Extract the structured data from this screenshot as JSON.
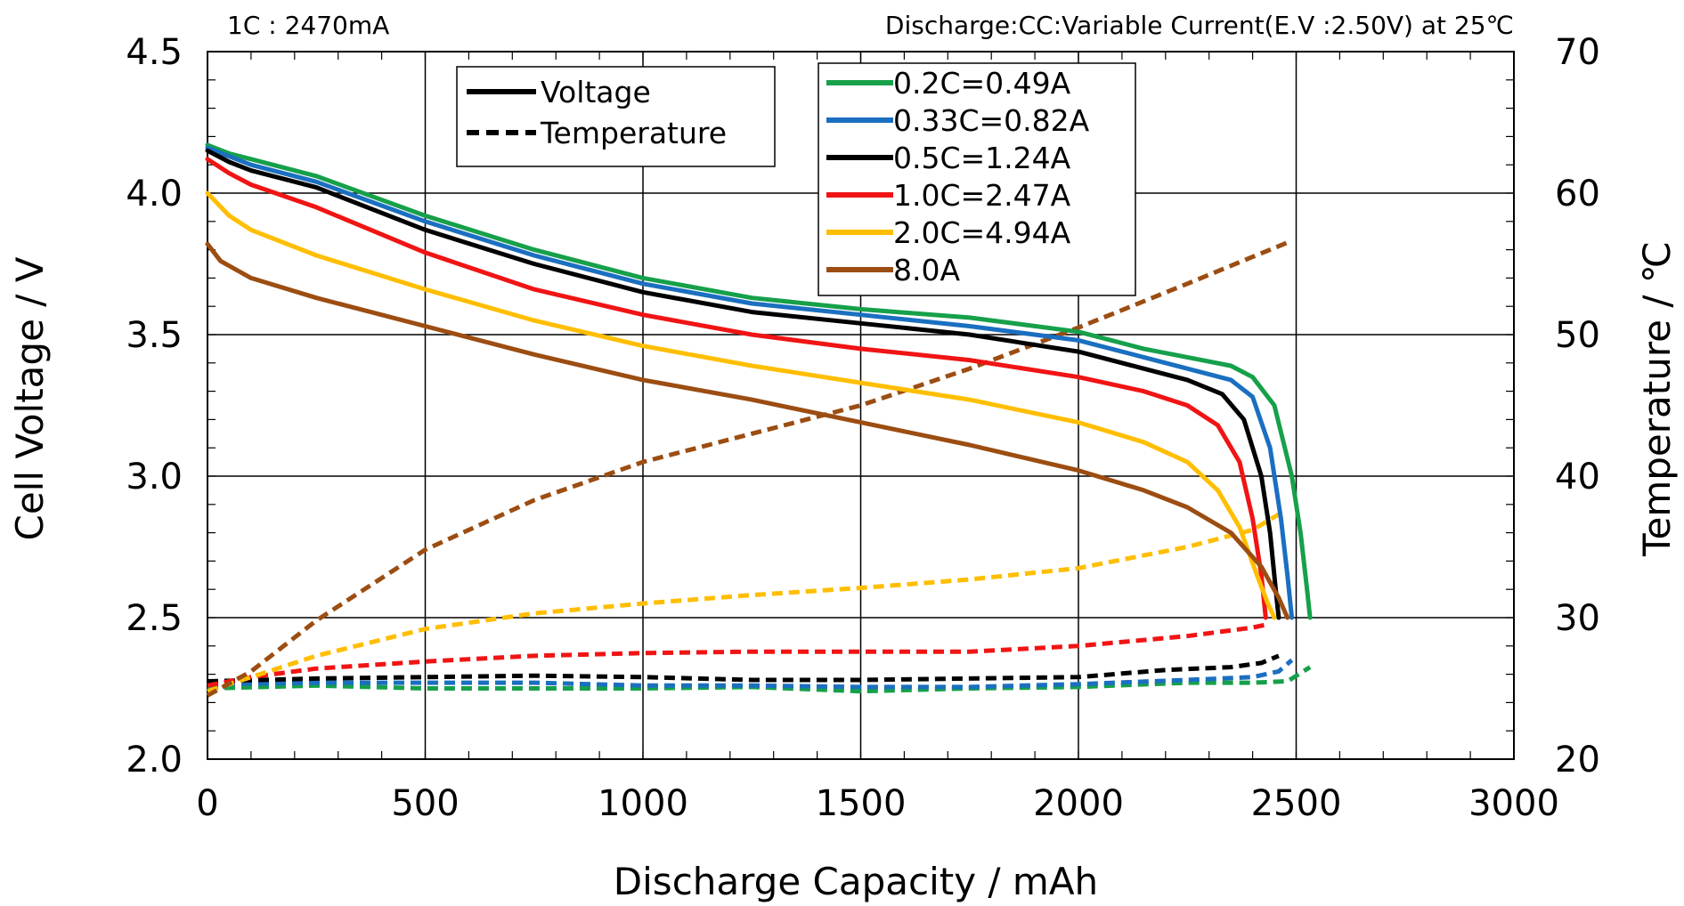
{
  "header": {
    "left_note": "1C : 2470mA",
    "right_note": "Discharge:CC:Variable  Current(E.V :2.50V) at 25℃"
  },
  "legend_style": {
    "entries": [
      {
        "label": "Voltage",
        "dash": "solid"
      },
      {
        "label": "Temperature",
        "dash": "dashed"
      }
    ]
  },
  "chart_data": {
    "type": "line",
    "xlabel": "Discharge  Capacity / mAh",
    "ylabel": "Cell  Voltage  /  V",
    "y2label": "Temperature / ℃",
    "xlim": [
      0,
      3000
    ],
    "ylim": [
      2.0,
      4.5
    ],
    "y2lim": [
      20,
      70
    ],
    "x_ticks": [
      "0",
      "500",
      "1000",
      "1500",
      "2000",
      "2500",
      "3000"
    ],
    "y_ticks": [
      "2.0",
      "2.5",
      "3.0",
      "3.5",
      "4.0",
      "4.5"
    ],
    "y2_ticks": [
      "20",
      "30",
      "40",
      "50",
      "60",
      "70"
    ],
    "grid": true,
    "legend_position": "top-center",
    "series": [
      {
        "name": "0.2C=0.49A",
        "color": "#16a04a",
        "voltage": [
          [
            0,
            4.17
          ],
          [
            50,
            4.14
          ],
          [
            100,
            4.12
          ],
          [
            250,
            4.06
          ],
          [
            500,
            3.92
          ],
          [
            750,
            3.8
          ],
          [
            1000,
            3.7
          ],
          [
            1250,
            3.63
          ],
          [
            1500,
            3.59
          ],
          [
            1750,
            3.56
          ],
          [
            2000,
            3.51
          ],
          [
            2150,
            3.45
          ],
          [
            2250,
            3.42
          ],
          [
            2350,
            3.39
          ],
          [
            2400,
            3.35
          ],
          [
            2450,
            3.25
          ],
          [
            2490,
            3.0
          ],
          [
            2510,
            2.8
          ],
          [
            2525,
            2.6
          ],
          [
            2532,
            2.5
          ]
        ],
        "temperature": [
          [
            0,
            25
          ],
          [
            250,
            25.2
          ],
          [
            500,
            25
          ],
          [
            750,
            25
          ],
          [
            1000,
            25
          ],
          [
            1250,
            25.1
          ],
          [
            1500,
            24.8
          ],
          [
            1750,
            25
          ],
          [
            2000,
            25.1
          ],
          [
            2250,
            25.4
          ],
          [
            2400,
            25.4
          ],
          [
            2480,
            25.5
          ],
          [
            2532,
            26.5
          ]
        ]
      },
      {
        "name": "0.33C=0.82A",
        "color": "#1b6fc0",
        "voltage": [
          [
            0,
            4.16
          ],
          [
            50,
            4.13
          ],
          [
            100,
            4.1
          ],
          [
            250,
            4.04
          ],
          [
            500,
            3.9
          ],
          [
            750,
            3.78
          ],
          [
            1000,
            3.68
          ],
          [
            1250,
            3.61
          ],
          [
            1500,
            3.57
          ],
          [
            1750,
            3.53
          ],
          [
            2000,
            3.48
          ],
          [
            2150,
            3.42
          ],
          [
            2250,
            3.38
          ],
          [
            2350,
            3.34
          ],
          [
            2400,
            3.28
          ],
          [
            2440,
            3.1
          ],
          [
            2465,
            2.85
          ],
          [
            2480,
            2.65
          ],
          [
            2490,
            2.5
          ]
        ],
        "temperature": [
          [
            0,
            25.3
          ],
          [
            250,
            25.4
          ],
          [
            500,
            25.4
          ],
          [
            750,
            25.4
          ],
          [
            1000,
            25.2
          ],
          [
            1250,
            25.2
          ],
          [
            1500,
            25.1
          ],
          [
            1750,
            25.1
          ],
          [
            2000,
            25.3
          ],
          [
            2250,
            25.6
          ],
          [
            2400,
            25.8
          ],
          [
            2460,
            26.2
          ],
          [
            2490,
            27
          ]
        ]
      },
      {
        "name": "0.5C=1.24A",
        "color": "#000000",
        "voltage": [
          [
            0,
            4.15
          ],
          [
            50,
            4.11
          ],
          [
            100,
            4.08
          ],
          [
            250,
            4.02
          ],
          [
            500,
            3.87
          ],
          [
            750,
            3.75
          ],
          [
            1000,
            3.65
          ],
          [
            1250,
            3.58
          ],
          [
            1500,
            3.54
          ],
          [
            1750,
            3.5
          ],
          [
            2000,
            3.44
          ],
          [
            2150,
            3.38
          ],
          [
            2250,
            3.34
          ],
          [
            2330,
            3.29
          ],
          [
            2380,
            3.2
          ],
          [
            2420,
            3.0
          ],
          [
            2440,
            2.8
          ],
          [
            2453,
            2.6
          ],
          [
            2460,
            2.5
          ]
        ],
        "temperature": [
          [
            0,
            25.5
          ],
          [
            250,
            25.7
          ],
          [
            500,
            25.8
          ],
          [
            750,
            25.9
          ],
          [
            1000,
            25.8
          ],
          [
            1250,
            25.6
          ],
          [
            1500,
            25.6
          ],
          [
            1750,
            25.7
          ],
          [
            2000,
            25.8
          ],
          [
            2200,
            26.3
          ],
          [
            2350,
            26.5
          ],
          [
            2420,
            26.8
          ],
          [
            2460,
            27.3
          ]
        ]
      },
      {
        "name": "1.0C=2.47A",
        "color": "#f01414",
        "voltage": [
          [
            0,
            4.12
          ],
          [
            50,
            4.07
          ],
          [
            100,
            4.03
          ],
          [
            250,
            3.95
          ],
          [
            500,
            3.79
          ],
          [
            750,
            3.66
          ],
          [
            1000,
            3.57
          ],
          [
            1250,
            3.5
          ],
          [
            1500,
            3.45
          ],
          [
            1750,
            3.41
          ],
          [
            2000,
            3.35
          ],
          [
            2150,
            3.3
          ],
          [
            2250,
            3.25
          ],
          [
            2320,
            3.18
          ],
          [
            2370,
            3.05
          ],
          [
            2400,
            2.85
          ],
          [
            2420,
            2.65
          ],
          [
            2430,
            2.5
          ]
        ],
        "temperature": [
          [
            0,
            25.2
          ],
          [
            100,
            25.8
          ],
          [
            250,
            26.4
          ],
          [
            500,
            26.9
          ],
          [
            750,
            27.3
          ],
          [
            1000,
            27.5
          ],
          [
            1250,
            27.6
          ],
          [
            1500,
            27.6
          ],
          [
            1750,
            27.6
          ],
          [
            2000,
            28
          ],
          [
            2250,
            28.7
          ],
          [
            2400,
            29.3
          ],
          [
            2430,
            29.5
          ]
        ]
      },
      {
        "name": "2.0C=4.94A",
        "color": "#ffbe00",
        "voltage": [
          [
            0,
            4.0
          ],
          [
            50,
            3.92
          ],
          [
            100,
            3.87
          ],
          [
            250,
            3.78
          ],
          [
            500,
            3.66
          ],
          [
            750,
            3.55
          ],
          [
            1000,
            3.46
          ],
          [
            1250,
            3.39
          ],
          [
            1500,
            3.33
          ],
          [
            1750,
            3.27
          ],
          [
            2000,
            3.19
          ],
          [
            2150,
            3.12
          ],
          [
            2250,
            3.05
          ],
          [
            2320,
            2.95
          ],
          [
            2370,
            2.82
          ],
          [
            2410,
            2.65
          ],
          [
            2435,
            2.55
          ],
          [
            2450,
            2.5
          ]
        ],
        "temperature": [
          [
            0,
            24.8
          ],
          [
            100,
            25.8
          ],
          [
            250,
            27.3
          ],
          [
            500,
            29.2
          ],
          [
            750,
            30.3
          ],
          [
            1000,
            31
          ],
          [
            1250,
            31.6
          ],
          [
            1500,
            32.1
          ],
          [
            1750,
            32.7
          ],
          [
            2000,
            33.5
          ],
          [
            2250,
            35
          ],
          [
            2400,
            36.2
          ],
          [
            2460,
            37.3
          ]
        ]
      },
      {
        "name": "8.0A",
        "color": "#9c4d12",
        "voltage": [
          [
            0,
            3.82
          ],
          [
            30,
            3.76
          ],
          [
            100,
            3.7
          ],
          [
            250,
            3.63
          ],
          [
            500,
            3.53
          ],
          [
            750,
            3.43
          ],
          [
            1000,
            3.34
          ],
          [
            1250,
            3.27
          ],
          [
            1500,
            3.19
          ],
          [
            1750,
            3.11
          ],
          [
            2000,
            3.02
          ],
          [
            2150,
            2.95
          ],
          [
            2250,
            2.89
          ],
          [
            2350,
            2.8
          ],
          [
            2420,
            2.68
          ],
          [
            2460,
            2.57
          ],
          [
            2480,
            2.5
          ]
        ],
        "temperature": [
          [
            0,
            24.5
          ],
          [
            100,
            26.2
          ],
          [
            250,
            29.8
          ],
          [
            500,
            34.8
          ],
          [
            750,
            38.3
          ],
          [
            1000,
            41
          ],
          [
            1250,
            43
          ],
          [
            1500,
            45
          ],
          [
            1750,
            47.6
          ],
          [
            2000,
            50.5
          ],
          [
            2250,
            53.6
          ],
          [
            2400,
            55.5
          ],
          [
            2480,
            56.5
          ]
        ]
      }
    ]
  }
}
